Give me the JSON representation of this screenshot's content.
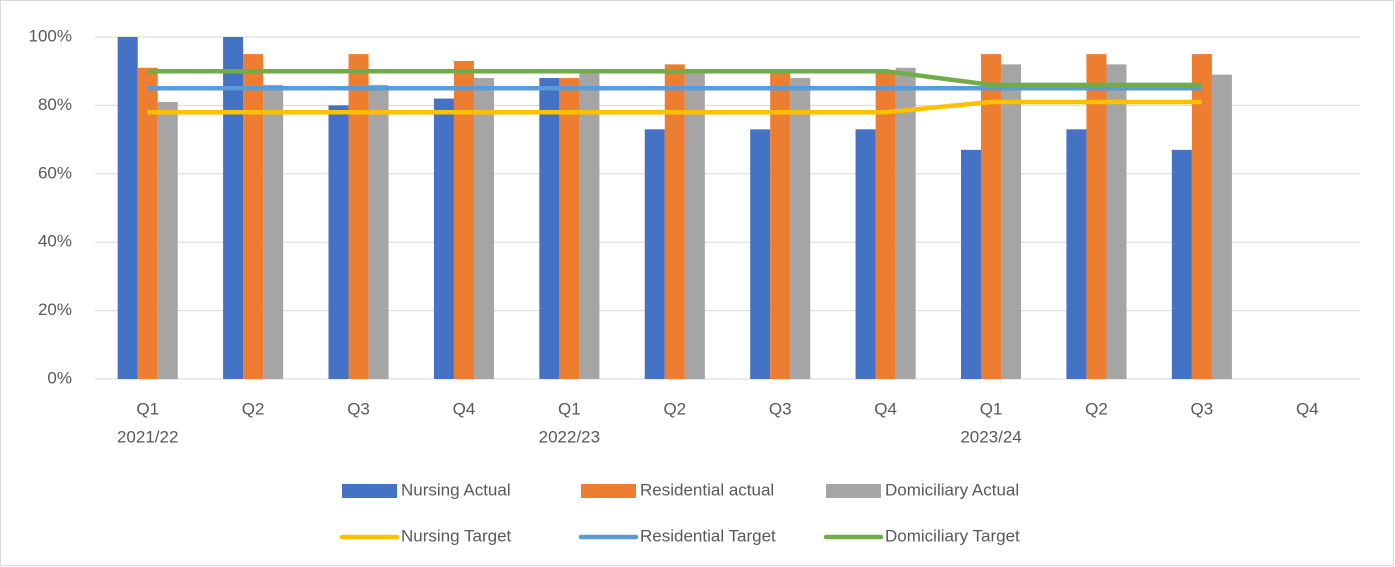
{
  "chart_data": {
    "type": "bar",
    "categories": [
      "Q1",
      "Q2",
      "Q3",
      "Q4",
      "Q1",
      "Q2",
      "Q3",
      "Q4",
      "Q1",
      "Q2",
      "Q3",
      "Q4"
    ],
    "year_labels": [
      "2021/22",
      null,
      null,
      null,
      "2022/23",
      null,
      null,
      null,
      "2023/24",
      null,
      null,
      null
    ],
    "series": [
      {
        "name": "Nursing Actual",
        "type": "bar",
        "color": "#4472c4",
        "values": [
          100,
          100,
          80,
          82,
          88,
          73,
          73,
          73,
          67,
          73,
          67,
          null
        ]
      },
      {
        "name": "Residential actual",
        "type": "bar",
        "color": "#ed7d31",
        "values": [
          91,
          95,
          95,
          93,
          88,
          92,
          90,
          90,
          95,
          95,
          95,
          null
        ]
      },
      {
        "name": "Domiciliary Actual",
        "type": "bar",
        "color": "#a5a5a5",
        "values": [
          81,
          86,
          86,
          88,
          90,
          90,
          88,
          91,
          92,
          92,
          89,
          null
        ]
      },
      {
        "name": "Nursing Target",
        "type": "line",
        "color": "#ffc000",
        "values": [
          78,
          78,
          78,
          78,
          78,
          78,
          78,
          78,
          81,
          81,
          81,
          null
        ]
      },
      {
        "name": "Residential Target",
        "type": "line",
        "color": "#5b9bd5",
        "values": [
          85,
          85,
          85,
          85,
          85,
          85,
          85,
          85,
          85,
          85,
          85,
          null
        ]
      },
      {
        "name": "Domiciliary Target",
        "type": "line",
        "color": "#70ad47",
        "values": [
          90,
          90,
          90,
          90,
          90,
          90,
          90,
          90,
          86,
          86,
          86,
          null
        ]
      }
    ],
    "ylim": [
      0,
      100
    ],
    "yticks": [
      {
        "value": 0,
        "label": "0%"
      },
      {
        "value": 20,
        "label": "20%"
      },
      {
        "value": 40,
        "label": "40%"
      },
      {
        "value": 60,
        "label": "60%"
      },
      {
        "value": 80,
        "label": "80%"
      },
      {
        "value": 100,
        "label": "100%"
      }
    ],
    "grid": true,
    "legend": "bottom"
  }
}
